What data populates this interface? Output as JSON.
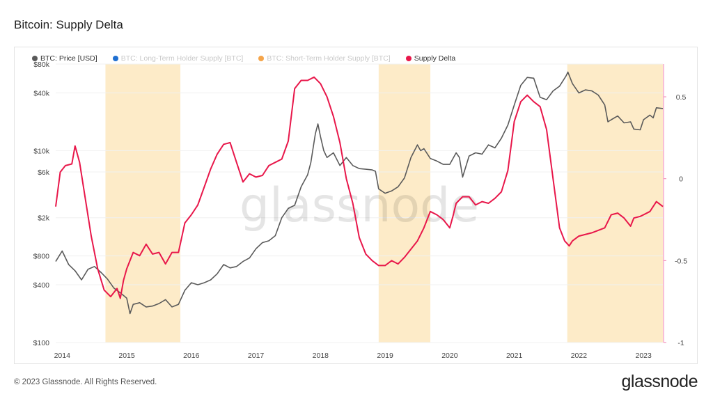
{
  "page": {
    "title": "Bitcoin: Supply Delta",
    "watermark": "glassnode",
    "footer": "© 2023 Glassnode. All Rights Reserved.",
    "brand": "glassnode"
  },
  "legend": [
    {
      "label": "BTC: Price [USD]",
      "color": "#5a5a5a",
      "muted": false
    },
    {
      "label": "BTC: Long-Term Holder Supply [BTC]",
      "color": "#1f6fd1",
      "muted": true
    },
    {
      "label": "BTC: Short-Term Holder Supply [BTC]",
      "color": "#f5a54a",
      "muted": true
    },
    {
      "label": "Supply Delta",
      "color": "#e8174a",
      "muted": false
    }
  ],
  "chart_data": {
    "type": "line",
    "title": "Bitcoin: Supply Delta",
    "x_ticks": [
      "2014",
      "2015",
      "2016",
      "2017",
      "2018",
      "2019",
      "2020",
      "2021",
      "2022",
      "2023"
    ],
    "y_left": {
      "scale": "log",
      "range": [
        100,
        80000
      ],
      "ticks": [
        "$80k",
        "$40k",
        "$10k",
        "$6k",
        "$2k",
        "$800",
        "$400",
        "$100"
      ],
      "tick_values": [
        80000,
        40000,
        10000,
        6000,
        2000,
        800,
        400,
        100
      ]
    },
    "y_right": {
      "scale": "linear",
      "range": [
        -1,
        0.7
      ],
      "ticks": [
        "0.5",
        "0",
        "-0.5",
        "-1"
      ],
      "tick_values": [
        0.5,
        0,
        -0.5,
        -1
      ]
    },
    "x_range": [
      2013.9,
      2023.3
    ],
    "shaded_periods": [
      [
        2014.67,
        2015.83
      ],
      [
        2018.9,
        2019.7
      ],
      [
        2021.82,
        2023.3
      ]
    ],
    "shade_color": "#fdebc8",
    "series": [
      {
        "name": "BTC: Price [USD]",
        "axis": "left",
        "color": "#5a5a5a",
        "points": [
          [
            2013.9,
            700
          ],
          [
            2014.0,
            900
          ],
          [
            2014.1,
            650
          ],
          [
            2014.2,
            560
          ],
          [
            2014.3,
            450
          ],
          [
            2014.4,
            580
          ],
          [
            2014.5,
            620
          ],
          [
            2014.6,
            540
          ],
          [
            2014.7,
            460
          ],
          [
            2014.8,
            370
          ],
          [
            2014.9,
            330
          ],
          [
            2015.0,
            290
          ],
          [
            2015.05,
            200
          ],
          [
            2015.1,
            250
          ],
          [
            2015.2,
            260
          ],
          [
            2015.3,
            235
          ],
          [
            2015.4,
            240
          ],
          [
            2015.5,
            255
          ],
          [
            2015.6,
            280
          ],
          [
            2015.7,
            235
          ],
          [
            2015.8,
            250
          ],
          [
            2015.9,
            350
          ],
          [
            2016.0,
            420
          ],
          [
            2016.1,
            400
          ],
          [
            2016.2,
            420
          ],
          [
            2016.3,
            450
          ],
          [
            2016.4,
            520
          ],
          [
            2016.5,
            650
          ],
          [
            2016.6,
            600
          ],
          [
            2016.7,
            620
          ],
          [
            2016.8,
            700
          ],
          [
            2016.9,
            760
          ],
          [
            2017.0,
            950
          ],
          [
            2017.1,
            1100
          ],
          [
            2017.2,
            1150
          ],
          [
            2017.3,
            1300
          ],
          [
            2017.4,
            2000
          ],
          [
            2017.5,
            2500
          ],
          [
            2017.6,
            2700
          ],
          [
            2017.7,
            4200
          ],
          [
            2017.8,
            5600
          ],
          [
            2017.85,
            7500
          ],
          [
            2017.92,
            15000
          ],
          [
            2017.96,
            19000
          ],
          [
            2018.0,
            14000
          ],
          [
            2018.05,
            10000
          ],
          [
            2018.1,
            8500
          ],
          [
            2018.2,
            9500
          ],
          [
            2018.3,
            7000
          ],
          [
            2018.4,
            8500
          ],
          [
            2018.5,
            7000
          ],
          [
            2018.6,
            6500
          ],
          [
            2018.7,
            6400
          ],
          [
            2018.8,
            6300
          ],
          [
            2018.85,
            6100
          ],
          [
            2018.9,
            4000
          ],
          [
            2019.0,
            3600
          ],
          [
            2019.1,
            3800
          ],
          [
            2019.2,
            4200
          ],
          [
            2019.3,
            5200
          ],
          [
            2019.4,
            8500
          ],
          [
            2019.5,
            11500
          ],
          [
            2019.55,
            10000
          ],
          [
            2019.6,
            10500
          ],
          [
            2019.7,
            8300
          ],
          [
            2019.8,
            7800
          ],
          [
            2019.9,
            7200
          ],
          [
            2020.0,
            7200
          ],
          [
            2020.1,
            9500
          ],
          [
            2020.15,
            8500
          ],
          [
            2020.2,
            5300
          ],
          [
            2020.3,
            8800
          ],
          [
            2020.4,
            9500
          ],
          [
            2020.5,
            9200
          ],
          [
            2020.6,
            11500
          ],
          [
            2020.7,
            10700
          ],
          [
            2020.8,
            13500
          ],
          [
            2020.9,
            18500
          ],
          [
            2021.0,
            30000
          ],
          [
            2021.1,
            48000
          ],
          [
            2021.2,
            58000
          ],
          [
            2021.3,
            57000
          ],
          [
            2021.4,
            36000
          ],
          [
            2021.5,
            34000
          ],
          [
            2021.6,
            42000
          ],
          [
            2021.7,
            47000
          ],
          [
            2021.8,
            60000
          ],
          [
            2021.83,
            66000
          ],
          [
            2021.9,
            50000
          ],
          [
            2022.0,
            40000
          ],
          [
            2022.1,
            43000
          ],
          [
            2022.2,
            42000
          ],
          [
            2022.3,
            38000
          ],
          [
            2022.4,
            30000
          ],
          [
            2022.45,
            20000
          ],
          [
            2022.5,
            21000
          ],
          [
            2022.6,
            23000
          ],
          [
            2022.7,
            19500
          ],
          [
            2022.8,
            20000
          ],
          [
            2022.85,
            16800
          ],
          [
            2022.95,
            16500
          ],
          [
            2023.0,
            21000
          ],
          [
            2023.1,
            23500
          ],
          [
            2023.15,
            22000
          ],
          [
            2023.2,
            28000
          ],
          [
            2023.3,
            27500
          ]
        ]
      },
      {
        "name": "Supply Delta",
        "axis": "right",
        "color": "#e8174a",
        "points": [
          [
            2013.9,
            -0.17
          ],
          [
            2013.97,
            0.04
          ],
          [
            2014.05,
            0.08
          ],
          [
            2014.15,
            0.09
          ],
          [
            2014.2,
            0.2
          ],
          [
            2014.27,
            0.1
          ],
          [
            2014.35,
            -0.1
          ],
          [
            2014.45,
            -0.35
          ],
          [
            2014.55,
            -0.55
          ],
          [
            2014.65,
            -0.68
          ],
          [
            2014.75,
            -0.72
          ],
          [
            2014.85,
            -0.67
          ],
          [
            2014.9,
            -0.73
          ],
          [
            2014.95,
            -0.62
          ],
          [
            2015.0,
            -0.55
          ],
          [
            2015.1,
            -0.45
          ],
          [
            2015.2,
            -0.47
          ],
          [
            2015.3,
            -0.4
          ],
          [
            2015.4,
            -0.46
          ],
          [
            2015.5,
            -0.45
          ],
          [
            2015.6,
            -0.52
          ],
          [
            2015.7,
            -0.45
          ],
          [
            2015.8,
            -0.45
          ],
          [
            2015.9,
            -0.27
          ],
          [
            2016.0,
            -0.22
          ],
          [
            2016.1,
            -0.16
          ],
          [
            2016.2,
            -0.05
          ],
          [
            2016.3,
            0.06
          ],
          [
            2016.4,
            0.15
          ],
          [
            2016.5,
            0.21
          ],
          [
            2016.6,
            0.22
          ],
          [
            2016.7,
            0.1
          ],
          [
            2016.8,
            -0.02
          ],
          [
            2016.9,
            0.03
          ],
          [
            2017.0,
            0.01
          ],
          [
            2017.1,
            0.02
          ],
          [
            2017.2,
            0.08
          ],
          [
            2017.3,
            0.1
          ],
          [
            2017.4,
            0.12
          ],
          [
            2017.5,
            0.23
          ],
          [
            2017.6,
            0.55
          ],
          [
            2017.7,
            0.6
          ],
          [
            2017.8,
            0.6
          ],
          [
            2017.9,
            0.62
          ],
          [
            2018.0,
            0.58
          ],
          [
            2018.1,
            0.5
          ],
          [
            2018.2,
            0.38
          ],
          [
            2018.3,
            0.22
          ],
          [
            2018.4,
            0.0
          ],
          [
            2018.5,
            -0.15
          ],
          [
            2018.6,
            -0.36
          ],
          [
            2018.7,
            -0.46
          ],
          [
            2018.8,
            -0.5
          ],
          [
            2018.9,
            -0.53
          ],
          [
            2019.0,
            -0.53
          ],
          [
            2019.1,
            -0.5
          ],
          [
            2019.2,
            -0.52
          ],
          [
            2019.3,
            -0.48
          ],
          [
            2019.4,
            -0.43
          ],
          [
            2019.5,
            -0.38
          ],
          [
            2019.6,
            -0.3
          ],
          [
            2019.7,
            -0.2
          ],
          [
            2019.8,
            -0.22
          ],
          [
            2019.9,
            -0.25
          ],
          [
            2020.0,
            -0.3
          ],
          [
            2020.05,
            -0.23
          ],
          [
            2020.1,
            -0.15
          ],
          [
            2020.2,
            -0.11
          ],
          [
            2020.3,
            -0.11
          ],
          [
            2020.4,
            -0.16
          ],
          [
            2020.5,
            -0.14
          ],
          [
            2020.6,
            -0.15
          ],
          [
            2020.7,
            -0.12
          ],
          [
            2020.8,
            -0.08
          ],
          [
            2020.9,
            0.05
          ],
          [
            2021.0,
            0.35
          ],
          [
            2021.1,
            0.47
          ],
          [
            2021.2,
            0.51
          ],
          [
            2021.3,
            0.47
          ],
          [
            2021.4,
            0.44
          ],
          [
            2021.5,
            0.3
          ],
          [
            2021.6,
            0.0
          ],
          [
            2021.7,
            -0.3
          ],
          [
            2021.78,
            -0.38
          ],
          [
            2021.85,
            -0.41
          ],
          [
            2021.9,
            -0.38
          ],
          [
            2022.0,
            -0.35
          ],
          [
            2022.2,
            -0.33
          ],
          [
            2022.4,
            -0.3
          ],
          [
            2022.5,
            -0.22
          ],
          [
            2022.6,
            -0.21
          ],
          [
            2022.7,
            -0.24
          ],
          [
            2022.8,
            -0.29
          ],
          [
            2022.85,
            -0.24
          ],
          [
            2022.95,
            -0.23
          ],
          [
            2023.0,
            -0.22
          ],
          [
            2023.1,
            -0.2
          ],
          [
            2023.2,
            -0.14
          ],
          [
            2023.3,
            -0.17
          ]
        ]
      }
    ]
  }
}
